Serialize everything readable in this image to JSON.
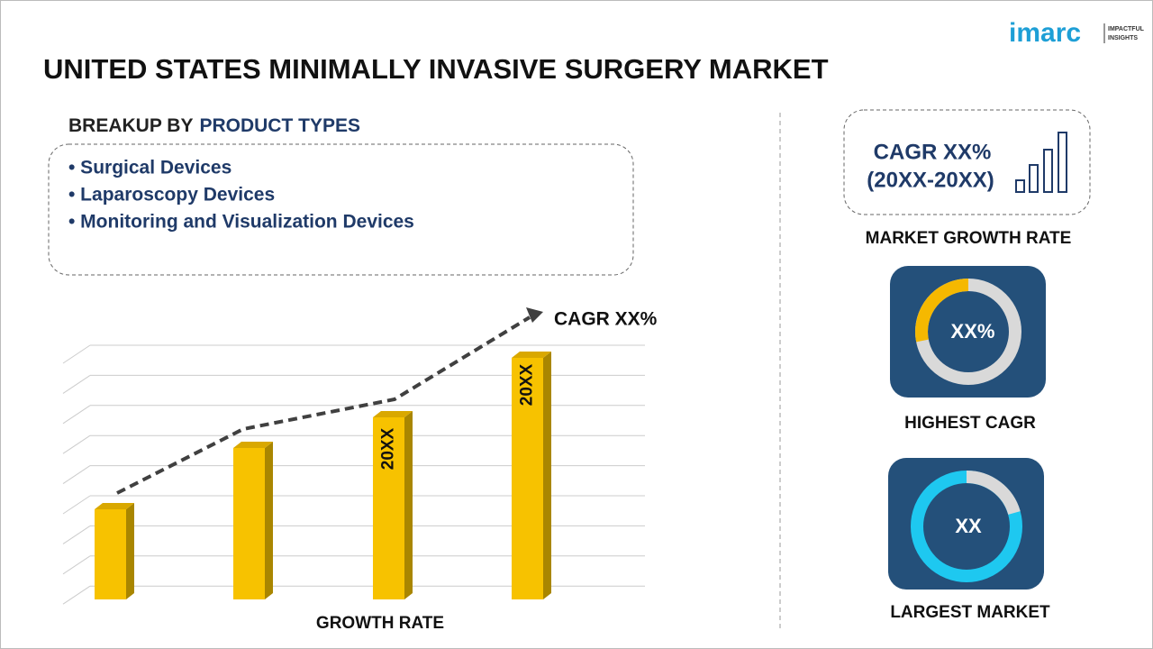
{
  "header": {
    "title": "UNITED STATES MINIMALLY INVASIVE SURGERY MARKET",
    "logo": "imarc",
    "logo_tagline_1": "IMPACTFUL",
    "logo_tagline_2": "INSIGHTS"
  },
  "breakup": {
    "heading_prefix": "BREAKUP BY",
    "heading_highlight": "PRODUCT TYPES",
    "items": [
      "• Surgical Devices",
      "• Laparoscopy Devices",
      "• Monitoring and Visualization Devices"
    ]
  },
  "growth_chart": {
    "trend_label": "CAGR XX%",
    "bar_labels": [
      "20XX",
      "20XX"
    ],
    "axis_label": "GROWTH RATE"
  },
  "sidebar": {
    "cagr_line_1": "CAGR XX%",
    "cagr_line_2": "(20XX-20XX)",
    "cagr_caption": "MARKET GROWTH RATE",
    "highest_value": "XX%",
    "highest_caption": "HIGHEST CAGR",
    "largest_value": "XX",
    "largest_caption": "LARGEST MARKET"
  }
}
